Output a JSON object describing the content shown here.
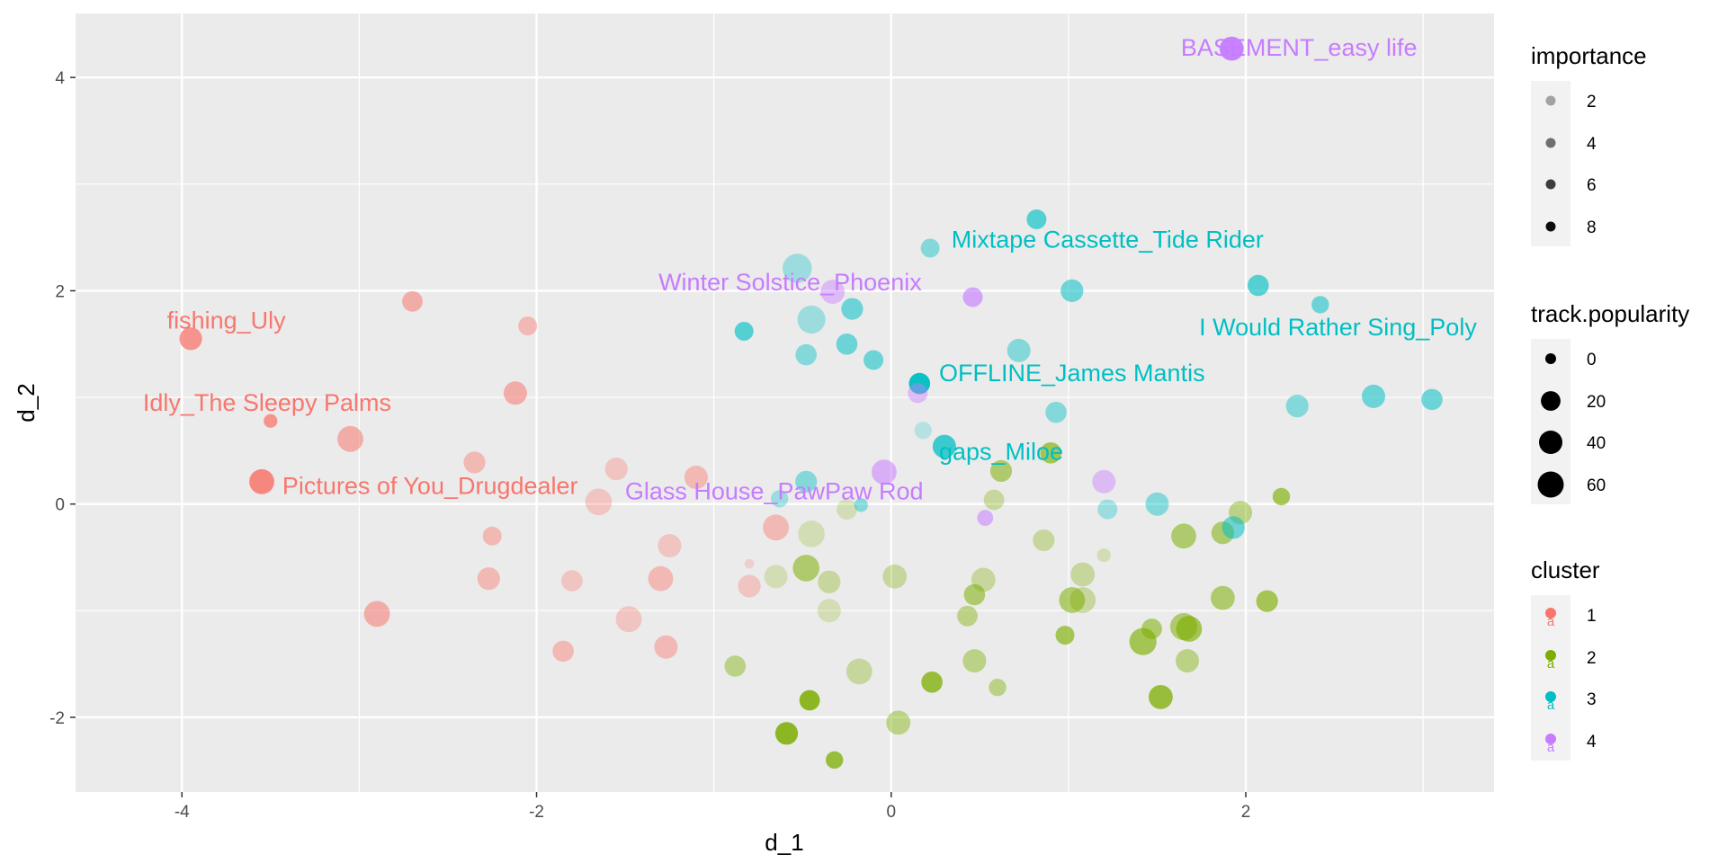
{
  "chart_data": {
    "type": "scatter",
    "xlabel": "d_1",
    "ylabel": "d_2",
    "xlim": [
      -4.6,
      3.4
    ],
    "ylim": [
      -2.7,
      4.6
    ],
    "x_ticks": [
      -4,
      -2,
      0,
      2
    ],
    "x_tick_labels": [
      "-4",
      "-2",
      "0",
      "2"
    ],
    "y_ticks": [
      -2,
      0,
      2,
      4
    ],
    "y_tick_labels": [
      "-2",
      "0",
      "2",
      "4"
    ],
    "grid": true,
    "legend_position": "right",
    "cluster_colors": {
      "1": "#F8766D",
      "2": "#7CAE00",
      "3": "#00BFC4",
      "4": "#C77CFF"
    },
    "legends": {
      "importance": {
        "title": "importance",
        "values": [
          2,
          4,
          6,
          8
        ],
        "labels": [
          "2",
          "4",
          "6",
          "8"
        ]
      },
      "popularity": {
        "title": "track.popularity",
        "values": [
          0,
          20,
          40,
          60
        ],
        "labels": [
          "0",
          "20",
          "40",
          "60"
        ]
      },
      "cluster": {
        "title": "cluster",
        "values": [
          "1",
          "2",
          "3",
          "4"
        ],
        "labels": [
          "1",
          "2",
          "3",
          "4"
        ]
      }
    },
    "labels": [
      {
        "text": "BASEMENT_easy life",
        "cluster": "4",
        "x": 2.3,
        "y": 4.28
      },
      {
        "text": "Mixtape Cassette_Tide Rider",
        "cluster": "3",
        "x": 1.22,
        "y": 2.48
      },
      {
        "text": "Winter Solstice_Phoenix",
        "cluster": "4",
        "x": -0.57,
        "y": 2.08
      },
      {
        "text": "fishing_Uly",
        "cluster": "1",
        "x": -3.75,
        "y": 1.72
      },
      {
        "text": "I Would Rather Sing_Poly",
        "cluster": "3",
        "x": 2.52,
        "y": 1.66
      },
      {
        "text": "OFFLINE_James Mantis",
        "cluster": "3",
        "x": 1.02,
        "y": 1.23
      },
      {
        "text": "Idly_The Sleepy Palms",
        "cluster": "1",
        "x": -3.52,
        "y": 0.95
      },
      {
        "text": "gaps_Miloe",
        "cluster": "3",
        "x": 0.62,
        "y": 0.49
      },
      {
        "text": "Pictures of You_Drugdealer",
        "cluster": "1",
        "x": -2.6,
        "y": 0.17
      },
      {
        "text": "Glass House_PawPaw Rod",
        "cluster": "4",
        "x": -0.66,
        "y": 0.12
      }
    ],
    "points": [
      {
        "x": -3.95,
        "y": 1.55,
        "importance": 6,
        "popularity": 28,
        "cluster": "1"
      },
      {
        "x": -3.5,
        "y": 0.78,
        "importance": 6,
        "popularity": 8,
        "cluster": "1"
      },
      {
        "x": -3.55,
        "y": 0.21,
        "importance": 7,
        "popularity": 35,
        "cluster": "1"
      },
      {
        "x": -2.7,
        "y": 1.9,
        "importance": 4,
        "popularity": 22,
        "cluster": "1"
      },
      {
        "x": -2.05,
        "y": 1.67,
        "importance": 3,
        "popularity": 18,
        "cluster": "1"
      },
      {
        "x": -2.12,
        "y": 1.04,
        "importance": 4,
        "popularity": 30,
        "cluster": "1"
      },
      {
        "x": -3.05,
        "y": 0.61,
        "importance": 4,
        "popularity": 38,
        "cluster": "1"
      },
      {
        "x": -2.35,
        "y": 0.39,
        "importance": 3,
        "popularity": 25,
        "cluster": "1"
      },
      {
        "x": -1.55,
        "y": 0.33,
        "importance": 2,
        "popularity": 28,
        "cluster": "1"
      },
      {
        "x": -1.65,
        "y": 0.02,
        "importance": 2,
        "popularity": 40,
        "cluster": "1"
      },
      {
        "x": -1.1,
        "y": 0.25,
        "importance": 3,
        "popularity": 30,
        "cluster": "1"
      },
      {
        "x": -2.25,
        "y": -0.3,
        "importance": 3,
        "popularity": 18,
        "cluster": "1"
      },
      {
        "x": -1.25,
        "y": -0.39,
        "importance": 2,
        "popularity": 30,
        "cluster": "1"
      },
      {
        "x": -0.65,
        "y": -0.22,
        "importance": 3,
        "popularity": 38,
        "cluster": "1"
      },
      {
        "x": -0.8,
        "y": -0.56,
        "importance": 1,
        "popularity": 3,
        "cluster": "1"
      },
      {
        "x": -2.27,
        "y": -0.7,
        "importance": 3,
        "popularity": 28,
        "cluster": "1"
      },
      {
        "x": -1.8,
        "y": -0.72,
        "importance": 2,
        "popularity": 24,
        "cluster": "1"
      },
      {
        "x": -1.3,
        "y": -0.7,
        "importance": 3,
        "popularity": 35,
        "cluster": "1"
      },
      {
        "x": -0.8,
        "y": -0.77,
        "importance": 2,
        "popularity": 28,
        "cluster": "1"
      },
      {
        "x": -2.9,
        "y": -1.03,
        "importance": 4,
        "popularity": 38,
        "cluster": "1"
      },
      {
        "x": -1.48,
        "y": -1.08,
        "importance": 2,
        "popularity": 38,
        "cluster": "1"
      },
      {
        "x": -1.27,
        "y": -1.34,
        "importance": 3,
        "popularity": 30,
        "cluster": "1"
      },
      {
        "x": -1.85,
        "y": -1.38,
        "importance": 3,
        "popularity": 24,
        "cluster": "1"
      },
      {
        "x": -0.45,
        "y": -0.28,
        "importance": 1,
        "popularity": 40,
        "cluster": "2"
      },
      {
        "x": -0.25,
        "y": -0.05,
        "importance": 1,
        "popularity": 22,
        "cluster": "2"
      },
      {
        "x": -0.65,
        "y": -0.68,
        "importance": 1,
        "popularity": 30,
        "cluster": "2"
      },
      {
        "x": -0.48,
        "y": -0.6,
        "importance": 4,
        "popularity": 40,
        "cluster": "2"
      },
      {
        "x": -0.35,
        "y": -0.73,
        "importance": 2,
        "popularity": 28,
        "cluster": "2"
      },
      {
        "x": 0.02,
        "y": -0.68,
        "importance": 2,
        "popularity": 32,
        "cluster": "2"
      },
      {
        "x": -0.35,
        "y": -1.0,
        "importance": 1,
        "popularity": 30,
        "cluster": "2"
      },
      {
        "x": -0.88,
        "y": -1.52,
        "importance": 3,
        "popularity": 24,
        "cluster": "2"
      },
      {
        "x": -0.18,
        "y": -1.57,
        "importance": 2,
        "popularity": 38,
        "cluster": "2"
      },
      {
        "x": 0.23,
        "y": -1.67,
        "importance": 6,
        "popularity": 24,
        "cluster": "2"
      },
      {
        "x": -0.46,
        "y": -1.84,
        "importance": 7,
        "popularity": 22,
        "cluster": "2"
      },
      {
        "x": 0.04,
        "y": -2.05,
        "importance": 3,
        "popularity": 32,
        "cluster": "2"
      },
      {
        "x": -0.59,
        "y": -2.15,
        "importance": 7,
        "popularity": 28,
        "cluster": "2"
      },
      {
        "x": -0.32,
        "y": -2.4,
        "importance": 6,
        "popularity": 15,
        "cluster": "2"
      },
      {
        "x": 0.58,
        "y": 0.04,
        "importance": 2,
        "popularity": 22,
        "cluster": "2"
      },
      {
        "x": 0.62,
        "y": 0.31,
        "importance": 4,
        "popularity": 25,
        "cluster": "2"
      },
      {
        "x": 0.9,
        "y": 0.48,
        "importance": 5,
        "popularity": 24,
        "cluster": "2"
      },
      {
        "x": 0.47,
        "y": -0.85,
        "importance": 4,
        "popularity": 24,
        "cluster": "2"
      },
      {
        "x": 0.52,
        "y": -0.71,
        "importance": 2,
        "popularity": 32,
        "cluster": "2"
      },
      {
        "x": 0.86,
        "y": -0.34,
        "importance": 2,
        "popularity": 25,
        "cluster": "2"
      },
      {
        "x": 1.08,
        "y": -0.66,
        "importance": 2,
        "popularity": 32,
        "cluster": "2"
      },
      {
        "x": 1.2,
        "y": -0.48,
        "importance": 1,
        "popularity": 8,
        "cluster": "2"
      },
      {
        "x": 0.43,
        "y": -1.05,
        "importance": 3,
        "popularity": 22,
        "cluster": "2"
      },
      {
        "x": 1.02,
        "y": -0.9,
        "importance": 4,
        "popularity": 38,
        "cluster": "2"
      },
      {
        "x": 1.08,
        "y": -0.9,
        "importance": 2,
        "popularity": 38,
        "cluster": "2"
      },
      {
        "x": 0.47,
        "y": -1.47,
        "importance": 3,
        "popularity": 30,
        "cluster": "2"
      },
      {
        "x": 0.6,
        "y": -1.72,
        "importance": 3,
        "popularity": 15,
        "cluster": "2"
      },
      {
        "x": 0.98,
        "y": -1.23,
        "importance": 5,
        "popularity": 18,
        "cluster": "2"
      },
      {
        "x": 1.42,
        "y": -1.29,
        "importance": 5,
        "popularity": 42,
        "cluster": "2"
      },
      {
        "x": 1.47,
        "y": -1.17,
        "importance": 4,
        "popularity": 22,
        "cluster": "2"
      },
      {
        "x": 1.65,
        "y": -1.15,
        "importance": 4,
        "popularity": 42,
        "cluster": "2"
      },
      {
        "x": 1.68,
        "y": -1.17,
        "importance": 5,
        "popularity": 38,
        "cluster": "2"
      },
      {
        "x": 1.67,
        "y": -1.47,
        "importance": 3,
        "popularity": 30,
        "cluster": "2"
      },
      {
        "x": 1.52,
        "y": -1.81,
        "importance": 6,
        "popularity": 32,
        "cluster": "2"
      },
      {
        "x": 1.65,
        "y": -0.3,
        "importance": 4,
        "popularity": 35,
        "cluster": "2"
      },
      {
        "x": 1.87,
        "y": -0.27,
        "importance": 4,
        "popularity": 28,
        "cluster": "2"
      },
      {
        "x": 1.97,
        "y": -0.08,
        "importance": 3,
        "popularity": 30,
        "cluster": "2"
      },
      {
        "x": 1.87,
        "y": -0.88,
        "importance": 4,
        "popularity": 32,
        "cluster": "2"
      },
      {
        "x": 2.12,
        "y": -0.91,
        "importance": 5,
        "popularity": 25,
        "cluster": "2"
      },
      {
        "x": 2.2,
        "y": 0.07,
        "importance": 5,
        "popularity": 15,
        "cluster": "2"
      },
      {
        "x": -0.53,
        "y": 2.21,
        "importance": 2,
        "popularity": 50,
        "cluster": "3"
      },
      {
        "x": -0.45,
        "y": 1.73,
        "importance": 2,
        "popularity": 45,
        "cluster": "3"
      },
      {
        "x": -0.83,
        "y": 1.62,
        "importance": 5,
        "popularity": 18,
        "cluster": "3"
      },
      {
        "x": -0.48,
        "y": 1.4,
        "importance": 3,
        "popularity": 24,
        "cluster": "3"
      },
      {
        "x": -0.25,
        "y": 1.5,
        "importance": 4,
        "popularity": 24,
        "cluster": "3"
      },
      {
        "x": -0.22,
        "y": 1.83,
        "importance": 4,
        "popularity": 25,
        "cluster": "3"
      },
      {
        "x": -0.1,
        "y": 1.35,
        "importance": 4,
        "popularity": 20,
        "cluster": "3"
      },
      {
        "x": 0.22,
        "y": 2.4,
        "importance": 3,
        "popularity": 18,
        "cluster": "3"
      },
      {
        "x": 0.82,
        "y": 2.67,
        "importance": 5,
        "popularity": 20,
        "cluster": "3"
      },
      {
        "x": 1.02,
        "y": 2.0,
        "importance": 4,
        "popularity": 28,
        "cluster": "3"
      },
      {
        "x": 0.72,
        "y": 1.44,
        "importance": 3,
        "popularity": 30,
        "cluster": "3"
      },
      {
        "x": 0.16,
        "y": 1.13,
        "importance": 8,
        "popularity": 24,
        "cluster": "3"
      },
      {
        "x": 0.93,
        "y": 0.86,
        "importance": 3,
        "popularity": 24,
        "cluster": "3"
      },
      {
        "x": 0.18,
        "y": 0.69,
        "importance": 1,
        "popularity": 15,
        "cluster": "3"
      },
      {
        "x": 0.3,
        "y": 0.54,
        "importance": 6,
        "popularity": 30,
        "cluster": "3"
      },
      {
        "x": -0.63,
        "y": 0.05,
        "importance": 2,
        "popularity": 15,
        "cluster": "3"
      },
      {
        "x": -0.48,
        "y": 0.21,
        "importance": 3,
        "popularity": 25,
        "cluster": "3"
      },
      {
        "x": -0.17,
        "y": -0.01,
        "importance": 3,
        "popularity": 8,
        "cluster": "3"
      },
      {
        "x": 1.22,
        "y": -0.05,
        "importance": 2,
        "popularity": 20,
        "cluster": "3"
      },
      {
        "x": 1.5,
        "y": 0.0,
        "importance": 3,
        "popularity": 30,
        "cluster": "3"
      },
      {
        "x": 1.93,
        "y": -0.22,
        "importance": 4,
        "popularity": 28,
        "cluster": "3"
      },
      {
        "x": 2.07,
        "y": 2.05,
        "importance": 5,
        "popularity": 24,
        "cluster": "3"
      },
      {
        "x": 2.42,
        "y": 1.87,
        "importance": 4,
        "popularity": 15,
        "cluster": "3"
      },
      {
        "x": 2.29,
        "y": 0.92,
        "importance": 3,
        "popularity": 28,
        "cluster": "3"
      },
      {
        "x": 2.72,
        "y": 1.01,
        "importance": 4,
        "popularity": 30,
        "cluster": "3"
      },
      {
        "x": 3.05,
        "y": 0.98,
        "importance": 4,
        "popularity": 24,
        "cluster": "3"
      },
      {
        "x": 1.92,
        "y": 4.27,
        "importance": 8,
        "popularity": 32,
        "cluster": "4"
      },
      {
        "x": -0.33,
        "y": 1.99,
        "importance": 3,
        "popularity": 32,
        "cluster": "4"
      },
      {
        "x": 0.46,
        "y": 1.94,
        "importance": 5,
        "popularity": 20,
        "cluster": "4"
      },
      {
        "x": 0.15,
        "y": 1.04,
        "importance": 3,
        "popularity": 20,
        "cluster": "4"
      },
      {
        "x": -0.04,
        "y": 0.3,
        "importance": 4,
        "popularity": 35,
        "cluster": "4"
      },
      {
        "x": 1.2,
        "y": 0.21,
        "importance": 3,
        "popularity": 30,
        "cluster": "4"
      },
      {
        "x": 0.53,
        "y": -0.13,
        "importance": 4,
        "popularity": 12,
        "cluster": "4"
      }
    ]
  }
}
